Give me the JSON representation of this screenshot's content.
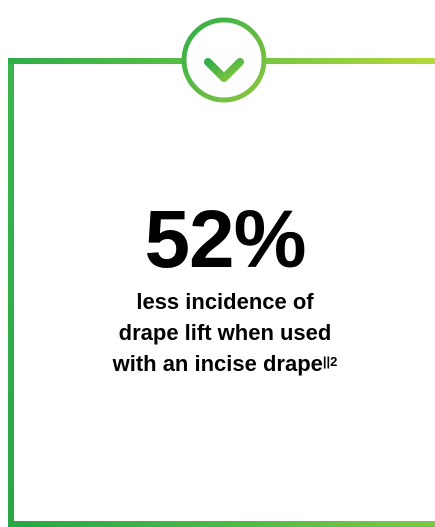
{
  "colors": {
    "frame_green": "#2fae48",
    "frame_lime": "#b5d83a",
    "badge_green": "#3ab54a",
    "text": "#000000"
  },
  "badge": {
    "icon": "arrow-down-icon"
  },
  "stat": {
    "value": "52%",
    "description_lines": [
      "less incidence of",
      "drape lift when used",
      "with an incise drape"
    ],
    "footnote_marker": "||2"
  }
}
